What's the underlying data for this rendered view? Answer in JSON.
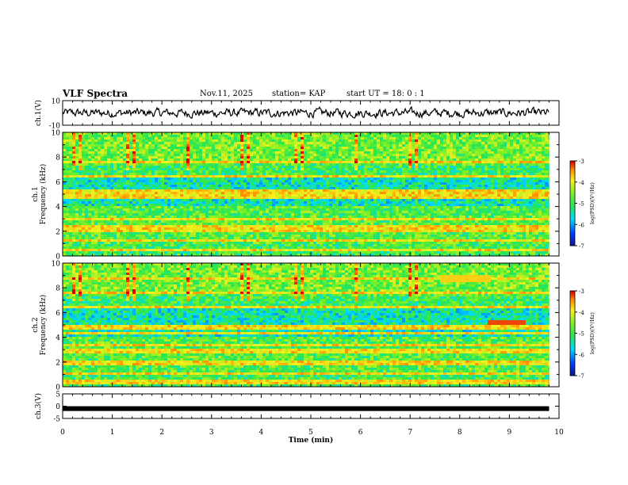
{
  "header": {
    "title": "VLF Spectra",
    "date": "Nov.11, 2025",
    "station": "station= KAP",
    "start": "start  UT =   18: 0  : 1"
  },
  "chart_data": [
    {
      "type": "line",
      "name": "ch1-waveform",
      "ylabel": "ch.1(V)",
      "ylim": [
        -10,
        10
      ],
      "yticks": [
        "10",
        "-10"
      ],
      "xlim": [
        0,
        10
      ],
      "note": "noisy waveform, amplitude roughly -4 to +4 V, data to ~9.8 min"
    },
    {
      "type": "heatmap",
      "name": "ch1-spectrogram",
      "ylabel_line1": "ch.1",
      "ylabel_line2": "Frequency  (kHz)",
      "ylim": [
        0,
        10
      ],
      "yticks": [
        "0",
        "2",
        "4",
        "6",
        "8",
        "10"
      ],
      "xlim": [
        0,
        10
      ],
      "data_end_min": 9.8,
      "colorbar": {
        "label": "log(PSD)(V²/Hz)",
        "range": [
          -7,
          -3
        ],
        "ticks": [
          "-3",
          "-4",
          "-5",
          "-6",
          "-7"
        ]
      }
    },
    {
      "type": "heatmap",
      "name": "ch2-spectrogram",
      "ylabel_line1": "ch.2",
      "ylabel_line2": "Frequency  (kHz)",
      "ylim": [
        0,
        10
      ],
      "yticks": [
        "0",
        "2",
        "4",
        "6",
        "8",
        "10"
      ],
      "xlim": [
        0,
        10
      ],
      "data_end_min": 9.8,
      "colorbar": {
        "label": "log(PSD)(V²/Hz)",
        "range": [
          -7,
          -3
        ],
        "ticks": [
          "-3",
          "-4",
          "-5",
          "-6",
          "-7"
        ]
      }
    },
    {
      "type": "line",
      "name": "ch3-waveform",
      "ylabel": "ch.3(V)",
      "ylim": [
        -5,
        5
      ],
      "yticks": [
        "5",
        "0",
        "-5"
      ],
      "xlim": [
        0,
        10
      ],
      "value": -1,
      "note": "constant thick line near -1 V"
    }
  ],
  "xaxis": {
    "label": "Time  (min)",
    "ticks": [
      "0",
      "1",
      "2",
      "3",
      "4",
      "5",
      "6",
      "7",
      "8",
      "9",
      "10"
    ]
  },
  "colors": {
    "axis": "#000000",
    "trace": "#000000"
  }
}
